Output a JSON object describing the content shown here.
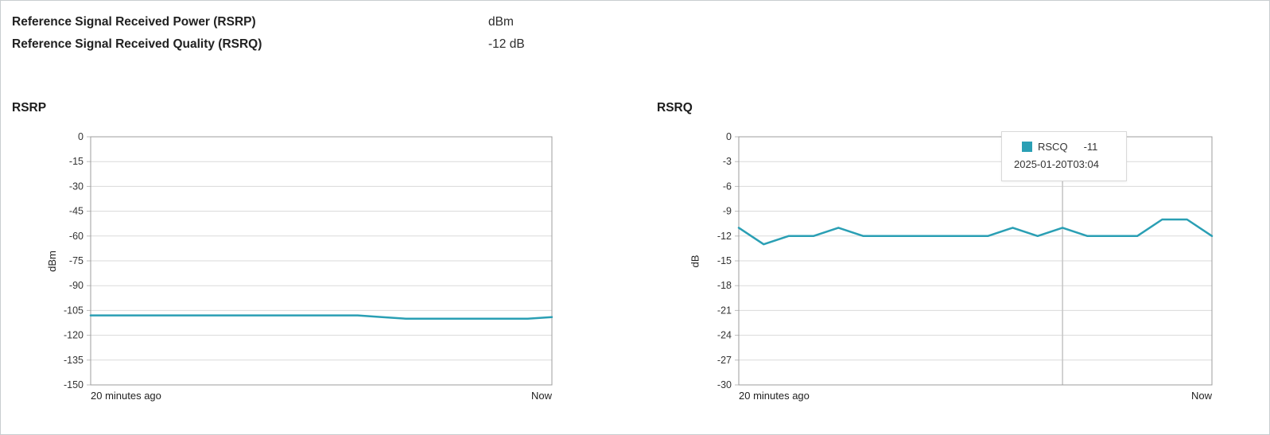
{
  "info": {
    "rows": [
      {
        "label": "Reference Signal Received Power (RSRP)",
        "value": "dBm"
      },
      {
        "label": "Reference Signal Received Quality (RSRQ)",
        "value": "-12 dB"
      }
    ]
  },
  "colors": {
    "line": "#2a9fb4",
    "grid": "#dadada",
    "tick": "#bdbdbd",
    "plot_border": "#9c9c9c",
    "crosshair": "#c4c4c4",
    "tooltip_border": "#d9d9d9"
  },
  "chart_data": [
    {
      "type": "line",
      "title": "RSRP",
      "ylabel": "dBm",
      "ylim": [
        -150,
        0
      ],
      "ytick_step": 15,
      "grid": "horizontal",
      "legend_position": "none",
      "x_axis_labels": [
        "20 minutes ago",
        "Now"
      ],
      "values": [
        -108,
        -108,
        -108,
        -108,
        -108,
        -108,
        -108,
        -108,
        -108,
        -108,
        -108,
        -108,
        -109,
        -110,
        -110,
        -110,
        -110,
        -110,
        -110,
        -109
      ]
    },
    {
      "type": "line",
      "title": "RSRQ",
      "ylabel": "dB",
      "ylim": [
        -30,
        0
      ],
      "ytick_step": 3,
      "grid": "horizontal",
      "legend_position": "none",
      "x_axis_labels": [
        "20 minutes ago",
        "Now"
      ],
      "values": [
        -11,
        -13,
        -12,
        -12,
        -11,
        -12,
        -12,
        -12,
        -12,
        -12,
        -12,
        -11,
        -12,
        -11,
        -12,
        -12,
        -12,
        -10,
        -10,
        -12
      ],
      "tooltip": {
        "series": "RSCQ",
        "value": "-11",
        "timestamp": "2025-01-20T03:04",
        "point_index": 13
      }
    }
  ]
}
